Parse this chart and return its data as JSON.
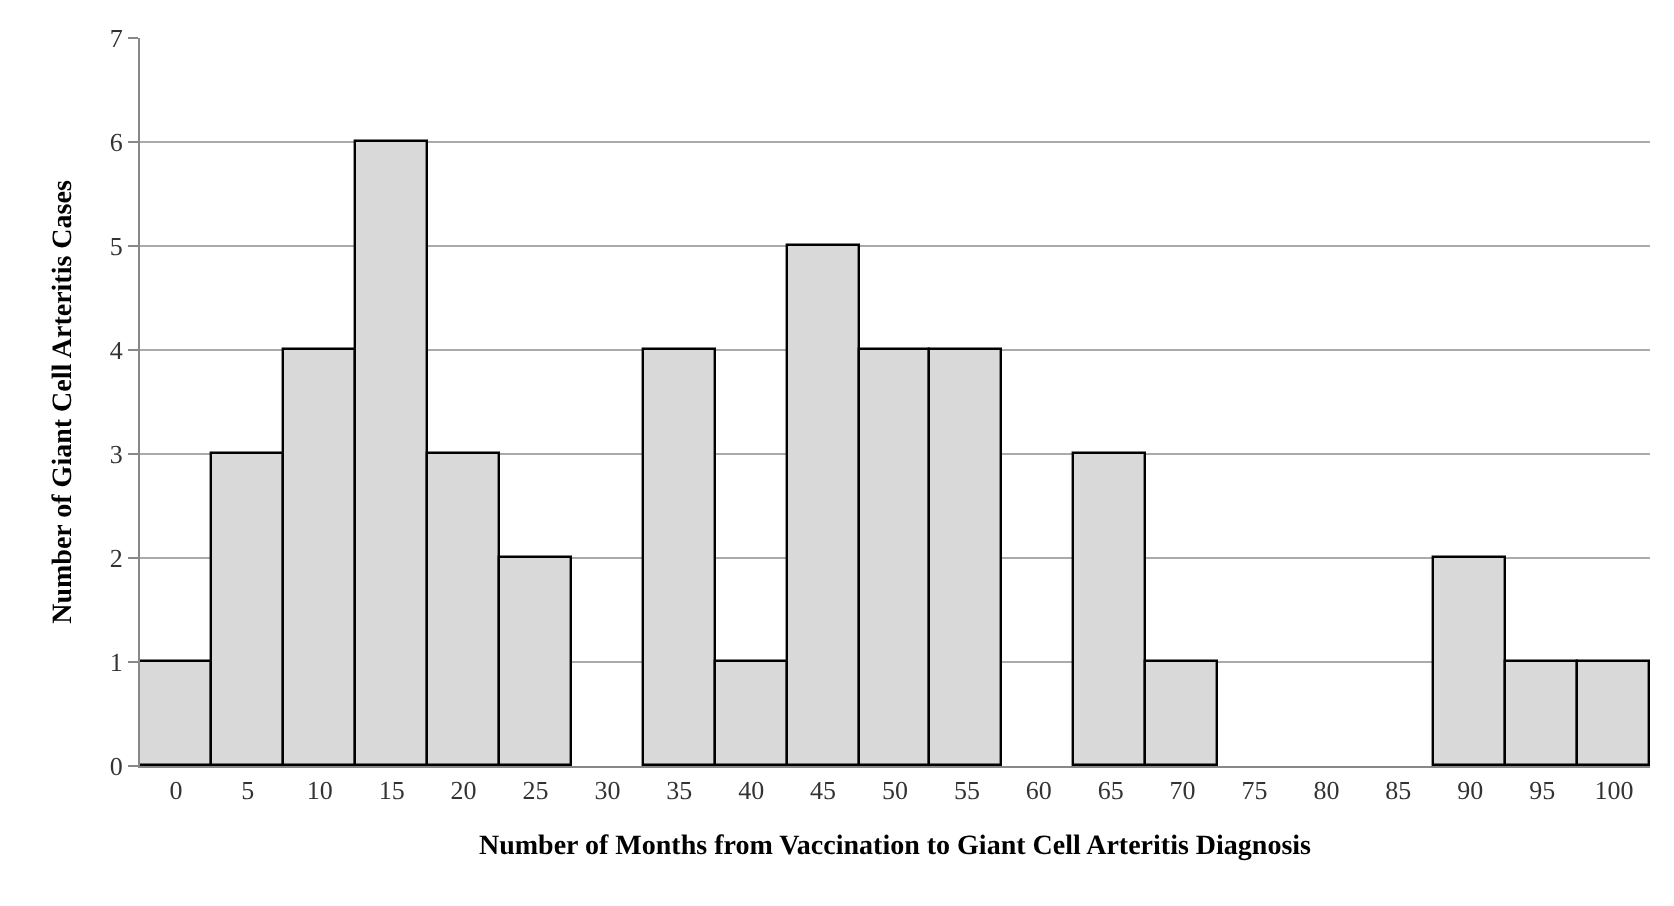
{
  "chart_data": {
    "type": "bar",
    "xlabel": "Number of Months from Vaccination to Giant Cell Arteritis Diagnosis",
    "ylabel": "Number of Giant Cell Arteritis Cases",
    "categories": [
      "0",
      "5",
      "10",
      "15",
      "20",
      "25",
      "30",
      "35",
      "40",
      "45",
      "50",
      "55",
      "60",
      "65",
      "70",
      "75",
      "80",
      "85",
      "90",
      "95",
      "100"
    ],
    "values": [
      1,
      3,
      4,
      6,
      3,
      2,
      0,
      4,
      1,
      5,
      4,
      4,
      0,
      3,
      1,
      0,
      0,
      0,
      2,
      1,
      1
    ],
    "color": "#d9d9d9",
    "ylim": [
      0,
      7
    ],
    "yticks": [
      0,
      1,
      2,
      3,
      4,
      5,
      6,
      7
    ],
    "grid": "y",
    "legend": false
  }
}
